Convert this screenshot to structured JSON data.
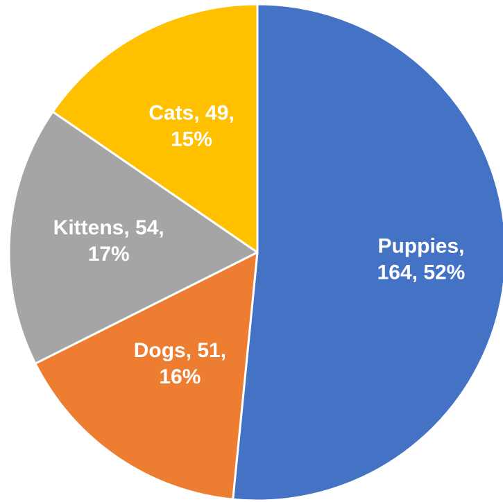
{
  "chart_data": {
    "type": "pie",
    "title": "",
    "slices": [
      {
        "name": "Puppies",
        "value": 164,
        "percent": "52%",
        "color": "#4472C4",
        "label_lines": [
          "Puppies,",
          "164, 52%"
        ]
      },
      {
        "name": "Dogs",
        "value": 51,
        "percent": "16%",
        "color": "#ED7D31",
        "label_lines": [
          "Dogs, 51,",
          "16%"
        ]
      },
      {
        "name": "Kittens",
        "value": 54,
        "percent": "17%",
        "color": "#A5A5A5",
        "label_lines": [
          "Kittens, 54,",
          "17%"
        ]
      },
      {
        "name": "Cats",
        "value": 49,
        "percent": "15%",
        "color": "#FFC000",
        "label_lines": [
          "Cats, 49,",
          "15%"
        ]
      }
    ],
    "start_angle": "12 o'clock",
    "direction": "clockwise",
    "legend": "none",
    "data_labels": "inside"
  }
}
